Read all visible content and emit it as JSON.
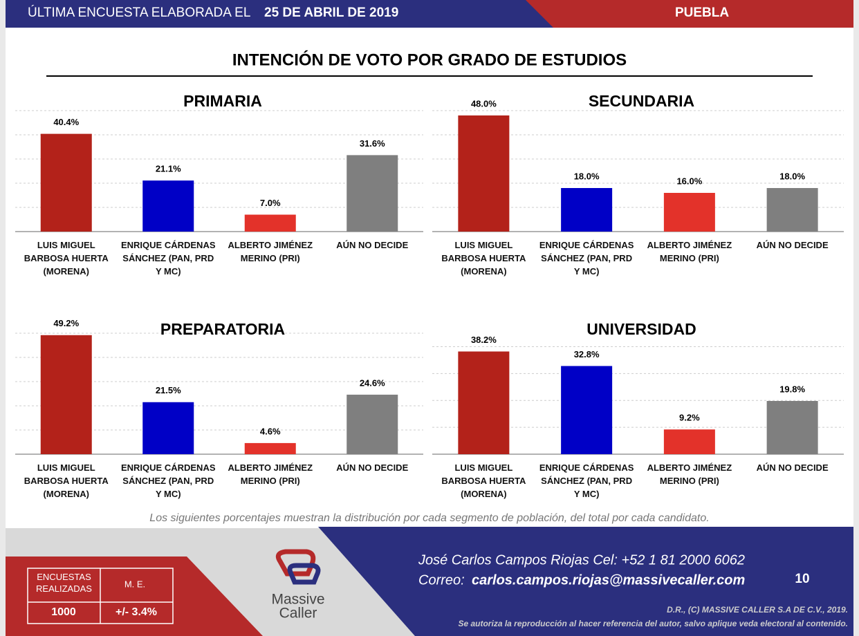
{
  "header": {
    "left_text": "ÚLTIMA ENCUESTA ELABORADA EL",
    "date": "25 DE ABRIL DE 2019",
    "region": "PUEBLA"
  },
  "title": "INTENCIÓN DE VOTO POR GRADO DE ESTUDIOS",
  "chart_data": [
    {
      "type": "bar",
      "title": "PRIMARIA",
      "categories": [
        "LUIS MIGUEL BARBOSA HUERTA (MORENA)",
        "ENRIQUE CÁRDENAS SÁNCHEZ (PAN, PRD Y MC)",
        "ALBERTO JIMÉNEZ MERINO (PRI)",
        "AÚN NO DECIDE"
      ],
      "values": [
        40.4,
        21.1,
        7.0,
        31.6
      ],
      "value_labels": [
        "40.4%",
        "21.1%",
        "7.0%",
        "31.6%"
      ],
      "colors": [
        "#b3221a",
        "#0000c6",
        "#e3322a",
        "#7f7f7f"
      ],
      "ylim": [
        0,
        50
      ],
      "yticks": [
        0,
        10,
        20,
        30,
        40,
        50
      ],
      "grid": true
    },
    {
      "type": "bar",
      "title": "SECUNDARIA",
      "categories": [
        "LUIS MIGUEL BARBOSA HUERTA (MORENA)",
        "ENRIQUE CÁRDENAS SÁNCHEZ (PAN, PRD Y MC)",
        "ALBERTO JIMÉNEZ MERINO (PRI)",
        "AÚN NO DECIDE"
      ],
      "values": [
        48.0,
        18.0,
        16.0,
        18.0
      ],
      "value_labels": [
        "48.0%",
        "18.0%",
        "16.0%",
        "18.0%"
      ],
      "colors": [
        "#b3221a",
        "#0000c6",
        "#e3322a",
        "#7f7f7f"
      ],
      "ylim": [
        0,
        50
      ],
      "yticks": [
        0,
        10,
        20,
        30,
        40,
        50
      ],
      "grid": true
    },
    {
      "type": "bar",
      "title": "PREPARATORIA",
      "categories": [
        "LUIS MIGUEL BARBOSA HUERTA (MORENA)",
        "ENRIQUE CÁRDENAS SÁNCHEZ (PAN, PRD Y MC)",
        "ALBERTO JIMÉNEZ MERINO (PRI)",
        "AÚN NO DECIDE"
      ],
      "values": [
        49.2,
        21.5,
        4.6,
        24.6
      ],
      "value_labels": [
        "49.2%",
        "21.5%",
        "4.6%",
        "24.6%"
      ],
      "colors": [
        "#b3221a",
        "#0000c6",
        "#e3322a",
        "#7f7f7f"
      ],
      "ylim": [
        0,
        50
      ],
      "yticks": [
        0,
        10,
        20,
        30,
        40,
        50
      ],
      "grid": true
    },
    {
      "type": "bar",
      "title": "UNIVERSIDAD",
      "categories": [
        "LUIS MIGUEL BARBOSA HUERTA (MORENA)",
        "ENRIQUE CÁRDENAS SÁNCHEZ (PAN, PRD Y MC)",
        "ALBERTO JIMÉNEZ MERINO (PRI)",
        "AÚN NO DECIDE"
      ],
      "values": [
        38.2,
        32.8,
        9.2,
        19.8
      ],
      "value_labels": [
        "38.2%",
        "32.8%",
        "9.2%",
        "19.8%"
      ],
      "colors": [
        "#b3221a",
        "#0000c6",
        "#e3322a",
        "#7f7f7f"
      ],
      "ylim": [
        0,
        45
      ],
      "yticks": [
        0,
        10,
        20,
        30,
        40
      ],
      "grid": true
    }
  ],
  "note": "Los siguientes porcentajes muestran la distribución por cada segmento de población, del total por cada candidato.",
  "footer": {
    "contact": "José Carlos Campos Riojas Cel: +52 1 81 2000 6062",
    "email_label": "Correo:",
    "email": "carlos.campos.riojas@massivecaller.com",
    "page": "10",
    "copyright": "D.R., (C) MASSIVE CALLER S.A DE C.V., 2019.",
    "disclaimer": "Se autoriza la reproducción al hacer referencia del autor, salvo aplique veda electoral al contenido.",
    "table": {
      "headers": [
        "ENCUESTAS REALIZADAS",
        "M. E."
      ],
      "values": [
        "1000",
        "+/- 3.4%"
      ]
    },
    "logo": [
      "Massive",
      "Caller"
    ]
  }
}
